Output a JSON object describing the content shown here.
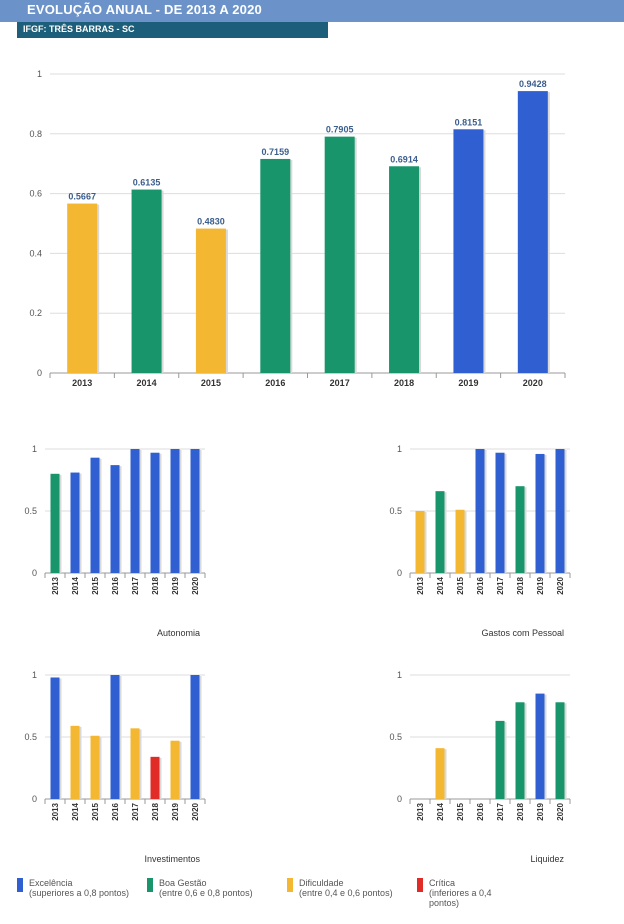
{
  "header": {
    "title": "EVOLUÇÃO ANUAL - DE 2013 A 2020",
    "subtitle": "IFGF: TRÊS BARRAS - SC"
  },
  "colors": {
    "excelencia": "#2f5fd0",
    "boa_gestao": "#18956b",
    "dificuldade": "#f4b731",
    "critica": "#e02b27",
    "grid": "#dddddd",
    "axis": "#999999",
    "value_label": "#3b5e8c"
  },
  "legend": [
    {
      "key": "excelencia",
      "line1": "Excelência",
      "line2": "(superiores a 0,8 pontos)"
    },
    {
      "key": "boa_gestao",
      "line1": "Boa Gestão",
      "line2": "(entre 0,6 e 0,8 pontos)"
    },
    {
      "key": "dificuldade",
      "line1": "Dificuldade",
      "line2": "(entre 0,4 e 0,6 pontos)"
    },
    {
      "key": "critica",
      "line1": "Crítica",
      "line2": "(inferiores a 0,4 pontos)"
    }
  ],
  "chart_data": [
    {
      "id": "main",
      "type": "bar",
      "title": "",
      "categories": [
        "2013",
        "2014",
        "2015",
        "2016",
        "2017",
        "2018",
        "2019",
        "2020"
      ],
      "values": [
        0.5667,
        0.6135,
        0.483,
        0.7159,
        0.7905,
        0.6914,
        0.8151,
        0.9428
      ],
      "value_labels": [
        "0.5667",
        "0.6135",
        "0.4830",
        "0.7159",
        "0.7905",
        "0.6914",
        "0.8151",
        "0.9428"
      ],
      "bar_colors": [
        "dificuldade",
        "boa_gestao",
        "dificuldade",
        "boa_gestao",
        "boa_gestao",
        "boa_gestao",
        "excelencia",
        "excelencia"
      ],
      "ylim": [
        0,
        1
      ],
      "yticks": [
        "0",
        "0.2",
        "0.4",
        "0.6",
        "0.8",
        "1"
      ],
      "grid": true
    },
    {
      "id": "autonomia",
      "type": "bar",
      "title": "Autonomia",
      "categories": [
        "2013",
        "2014",
        "2015",
        "2016",
        "2017",
        "2018",
        "2019",
        "2020"
      ],
      "values": [
        0.8,
        0.81,
        0.93,
        0.87,
        1.0,
        0.97,
        1.0,
        1.0
      ],
      "bar_colors": [
        "boa_gestao",
        "excelencia",
        "excelencia",
        "excelencia",
        "excelencia",
        "excelencia",
        "excelencia",
        "excelencia"
      ],
      "ylim": [
        0,
        1
      ],
      "yticks": [
        "0",
        "0.5",
        "1"
      ],
      "grid": true
    },
    {
      "id": "gastos_pessoal",
      "type": "bar",
      "title": "Gastos com Pessoal",
      "categories": [
        "2013",
        "2014",
        "2015",
        "2016",
        "2017",
        "2018",
        "2019",
        "2020"
      ],
      "values": [
        0.5,
        0.66,
        0.51,
        1.0,
        0.97,
        0.7,
        0.96,
        1.0
      ],
      "bar_colors": [
        "dificuldade",
        "boa_gestao",
        "dificuldade",
        "excelencia",
        "excelencia",
        "boa_gestao",
        "excelencia",
        "excelencia"
      ],
      "ylim": [
        0,
        1
      ],
      "yticks": [
        "0",
        "0.5",
        "1"
      ],
      "grid": true
    },
    {
      "id": "investimentos",
      "type": "bar",
      "title": "Investimentos",
      "categories": [
        "2013",
        "2014",
        "2015",
        "2016",
        "2017",
        "2018",
        "2019",
        "2020"
      ],
      "values": [
        0.98,
        0.59,
        0.51,
        1.0,
        0.57,
        0.34,
        0.47,
        1.0
      ],
      "bar_colors": [
        "excelencia",
        "dificuldade",
        "dificuldade",
        "excelencia",
        "dificuldade",
        "critica",
        "dificuldade",
        "excelencia"
      ],
      "ylim": [
        0,
        1
      ],
      "yticks": [
        "0",
        "0.5",
        "1"
      ],
      "grid": true
    },
    {
      "id": "liquidez",
      "type": "bar",
      "title": "Liquidez",
      "categories": [
        "2013",
        "2014",
        "2015",
        "2016",
        "2017",
        "2018",
        "2019",
        "2020"
      ],
      "values": [
        0,
        0.41,
        0,
        0,
        0.63,
        0.78,
        0.85,
        0.78
      ],
      "bar_colors": [
        "critica",
        "dificuldade",
        "critica",
        "critica",
        "boa_gestao",
        "boa_gestao",
        "excelencia",
        "boa_gestao"
      ],
      "ylim": [
        0,
        1
      ],
      "yticks": [
        "0",
        "0.5",
        "1"
      ],
      "grid": true
    }
  ]
}
